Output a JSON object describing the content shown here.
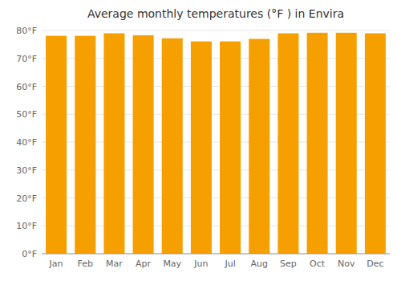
{
  "chart_data": {
    "type": "bar",
    "title": "Average monthly temperatures (°F ) in Envira",
    "categories": [
      "Jan",
      "Feb",
      "Mar",
      "Apr",
      "May",
      "Jun",
      "Jul",
      "Aug",
      "Sep",
      "Oct",
      "Nov",
      "Dec"
    ],
    "values": [
      78.1,
      78.1,
      79.0,
      78.3,
      77.2,
      76.1,
      76.1,
      77.0,
      79.0,
      79.2,
      79.2,
      79.0
    ],
    "color": "#F5A000",
    "ylim": [
      0,
      80
    ],
    "yticks": [
      {
        "value": 0,
        "label": "0°F"
      },
      {
        "value": 10,
        "label": "10°F"
      },
      {
        "value": 20,
        "label": "20°F"
      },
      {
        "value": 30,
        "label": "30°F"
      },
      {
        "value": 40,
        "label": "40°F"
      },
      {
        "value": 50,
        "label": "50°F"
      },
      {
        "value": 60,
        "label": "60°F"
      },
      {
        "value": 70,
        "label": "70°F"
      },
      {
        "value": 80,
        "label": "80°F"
      }
    ],
    "grid": true
  }
}
